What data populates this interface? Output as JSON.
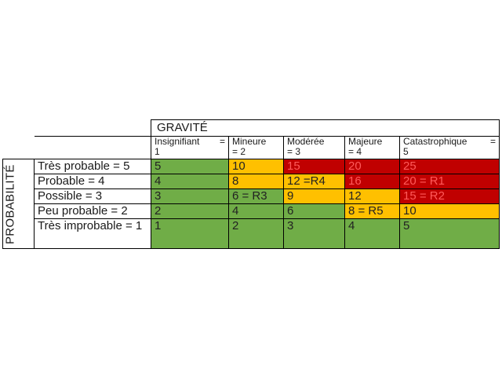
{
  "title_axis": "GRAVITÉ",
  "side_axis": "PROBABILITÉ",
  "columns": [
    {
      "name": "Insignifiant",
      "suffix": "=",
      "value": "1"
    },
    {
      "name": "Mineure",
      "suffix": "",
      "value": "= 2"
    },
    {
      "name": "Modérée",
      "suffix": "",
      "value": "= 3"
    },
    {
      "name": "Majeure",
      "suffix": "",
      "value": "= 4"
    },
    {
      "name": "Catastrophique",
      "suffix": "=",
      "value": "5"
    }
  ],
  "rows": [
    {
      "label": "Très probable = 5",
      "cells": [
        "5",
        "10",
        "15",
        "20",
        "25"
      ],
      "colors": [
        "g",
        "y",
        "r",
        "r",
        "r"
      ]
    },
    {
      "label": "Probable = 4",
      "cells": [
        "4",
        "8",
        "12 =R4",
        "16",
        "20 = R1"
      ],
      "colors": [
        "g",
        "y",
        "y",
        "r",
        "r"
      ]
    },
    {
      "label": "Possible = 3",
      "cells": [
        "3",
        "6 = R3",
        "9",
        "12",
        "15 = R2"
      ],
      "colors": [
        "g",
        "g",
        "y",
        "y",
        "r"
      ]
    },
    {
      "label": "Peu probable = 2",
      "cells": [
        "2",
        "4",
        "6",
        "8 = R5",
        "10"
      ],
      "colors": [
        "g",
        "g",
        "g",
        "y",
        "y"
      ]
    },
    {
      "label": "Très improbable = 1",
      "cells": [
        "1",
        "2",
        "3",
        "4",
        "5"
      ],
      "colors": [
        "g",
        "g",
        "g",
        "g",
        "g"
      ]
    }
  ],
  "colors": {
    "green": "#70ad47",
    "yellow": "#ffc000",
    "red": "#c00000"
  }
}
